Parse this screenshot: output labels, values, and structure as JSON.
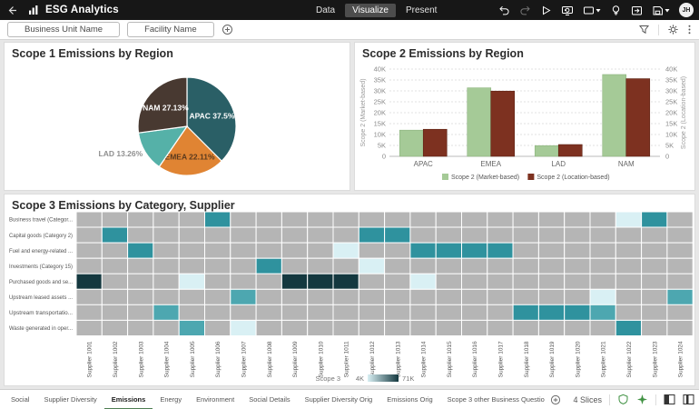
{
  "header": {
    "app_title": "ESG Analytics",
    "nav_tabs": [
      {
        "label": "Data",
        "active": false
      },
      {
        "label": "Visualize",
        "active": true
      },
      {
        "label": "Present",
        "active": false
      }
    ],
    "toolbar_icons": [
      "undo-icon",
      "redo-icon",
      "preview-icon",
      "refresh-icon",
      "comments-icon",
      "insights-icon",
      "export-icon",
      "save-icon"
    ],
    "avatar_initials": "JH"
  },
  "filter_bar": {
    "filter_chips": [
      {
        "label": "Business Unit Name"
      },
      {
        "label": "Facility Name"
      }
    ],
    "icons": [
      "add-filter-icon",
      "filter-icon",
      "settings-icon",
      "more-options-icon"
    ]
  },
  "chart_data": [
    {
      "type": "pie",
      "title": "Scope 1 Emissions by Region",
      "slices": [
        {
          "label": "APAC",
          "value": 37.5,
          "display": "APAC 37.5%",
          "color": "#2a5f66"
        },
        {
          "label": "EMEA",
          "value": 22.11,
          "display": "EMEA 22.11%",
          "color": "#e08433"
        },
        {
          "label": "LAD",
          "value": 13.26,
          "display": "LAD 13.26%",
          "color": "#55b1a8"
        },
        {
          "label": "NAM",
          "value": 27.13,
          "display": "NAM 27.13%",
          "color": "#483931"
        }
      ]
    },
    {
      "type": "bar",
      "title": "Scope 2 Emissions by Region",
      "categories": [
        "APAC",
        "EMEA",
        "LAD",
        "NAM"
      ],
      "series": [
        {
          "name": "Scope 2 (Market-based)",
          "color": "#a5ca97",
          "values": [
            12000,
            31400,
            4900,
            37500
          ]
        },
        {
          "name": "Scope 2 (Location-based)",
          "color": "#7d3120",
          "values": [
            12400,
            29900,
            5400,
            35600
          ]
        }
      ],
      "ylim": [
        0,
        40000
      ],
      "y_ticks": [
        "0",
        "5K",
        "10K",
        "15K",
        "20K",
        "25K",
        "30K",
        "35K",
        "40K"
      ],
      "left_axis_label": "Scope 2 (Market-based)",
      "right_axis_label": "Scope 2 (Location-based)",
      "grid": true,
      "legend_position": "bottom"
    },
    {
      "type": "heatmap",
      "title": "Scope 3 Emissions by Category, Supplier",
      "rows": [
        "Business travel (Categor...",
        "Capital goods (Category 2)",
        "Fuel and energy-related ...",
        "Investments (Category 15)",
        "Purchased goods and se...",
        "Upstream leased assets ...",
        "Upstream transportatio...",
        "Waste generated in oper..."
      ],
      "columns": [
        "Supplier 1001",
        "Supplier 1002",
        "Supplier 1003",
        "Supplier 1004",
        "Supplier 1005",
        "Supplier 1006",
        "Supplier 1007",
        "Supplier 1008",
        "Supplier 1009",
        "Supplier 1010",
        "Supplier 1011",
        "Supplier 1012",
        "Supplier 1013",
        "Supplier 1014",
        "Supplier 1015",
        "Supplier 1016",
        "Supplier 1017",
        "Supplier 1018",
        "Supplier 1019",
        "Supplier 1020",
        "Supplier 1021",
        "Supplier 1022",
        "Supplier 1023",
        "Supplier 1024"
      ],
      "cells": [
        ".....H...............LH.",
        ".H.........HH...........",
        "..H.......L..HHHH.......",
        ".......H...L............",
        "D...L...DDD..L..........",
        "......M.............L..M",
        "...M.............HHHM...",
        "....M.L..............H.."
      ],
      "cell_levels": {
        ".": "none (gray)",
        "L": "low ~8K",
        "M": "medium ~30K",
        "H": "high ~40K",
        "D": "max ~68K"
      },
      "palette": {
        "none": "#b5b5b5",
        "low": "#d9f0f4",
        "mid": "#4da7b0",
        "high": "#2f929e",
        "max": "#14383f"
      },
      "legend": {
        "label": "Scope 3",
        "min": "4K",
        "max": "71K"
      }
    }
  ],
  "footer": {
    "canvas_tabs": [
      {
        "label": "Social",
        "active": false
      },
      {
        "label": "Supplier Diversity",
        "active": false
      },
      {
        "label": "Emissions",
        "active": true
      },
      {
        "label": "Energy",
        "active": false
      },
      {
        "label": "Environment",
        "active": false
      },
      {
        "label": "Social Details",
        "active": false
      },
      {
        "label": "Supplier Diversity Orig",
        "active": false
      },
      {
        "label": "Emissions Orig",
        "active": false
      },
      {
        "label": "Scope 3 other Business Questions",
        "active": false
      }
    ],
    "slices_label": "4 Slices",
    "icons": [
      "add-canvas-icon",
      "quality-shield-icon",
      "ai-sparkle-icon",
      "layout-left-icon",
      "layout-columns-icon"
    ]
  },
  "colors": {
    "accent_green": "#3f9142",
    "active_tab_underline": "#4e7d52",
    "header_bg": "#171717"
  }
}
